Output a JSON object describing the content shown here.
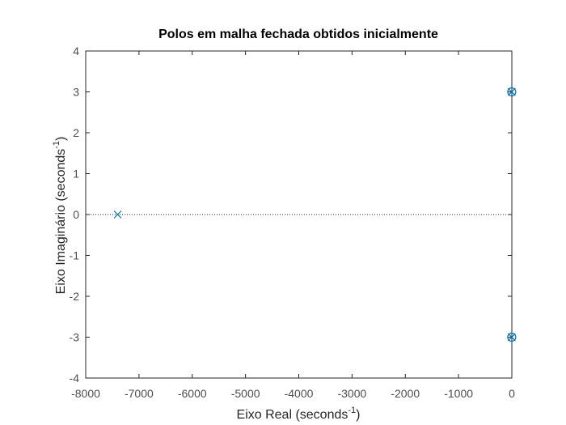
{
  "chart_data": {
    "type": "scatter",
    "title": "Polos em malha fechada obtidos inicialmente",
    "xlabel": {
      "text": "Eixo Real (seconds",
      "sup": "-1",
      "close": ")"
    },
    "ylabel": {
      "text": "Eixo Imaginário (seconds",
      "sup": "-1",
      "close": ")"
    },
    "xlim": [
      -8000,
      0
    ],
    "ylim": [
      -4,
      4
    ],
    "xticks": [
      -8000,
      -7000,
      -6000,
      -5000,
      -4000,
      -3000,
      -2000,
      -1000,
      0
    ],
    "yticks": [
      -4,
      -3,
      -2,
      -1,
      0,
      1,
      2,
      3,
      4
    ],
    "grid": false,
    "zero_line": true,
    "marker_color": "#0072bd",
    "poles": [
      {
        "x": -7400,
        "y": 0
      },
      {
        "x": -2,
        "y": 3.0
      },
      {
        "x": -2,
        "y": -3.0
      }
    ],
    "zeros": [
      {
        "x": -2,
        "y": 3.0
      },
      {
        "x": -2,
        "y": -3.0
      }
    ]
  }
}
